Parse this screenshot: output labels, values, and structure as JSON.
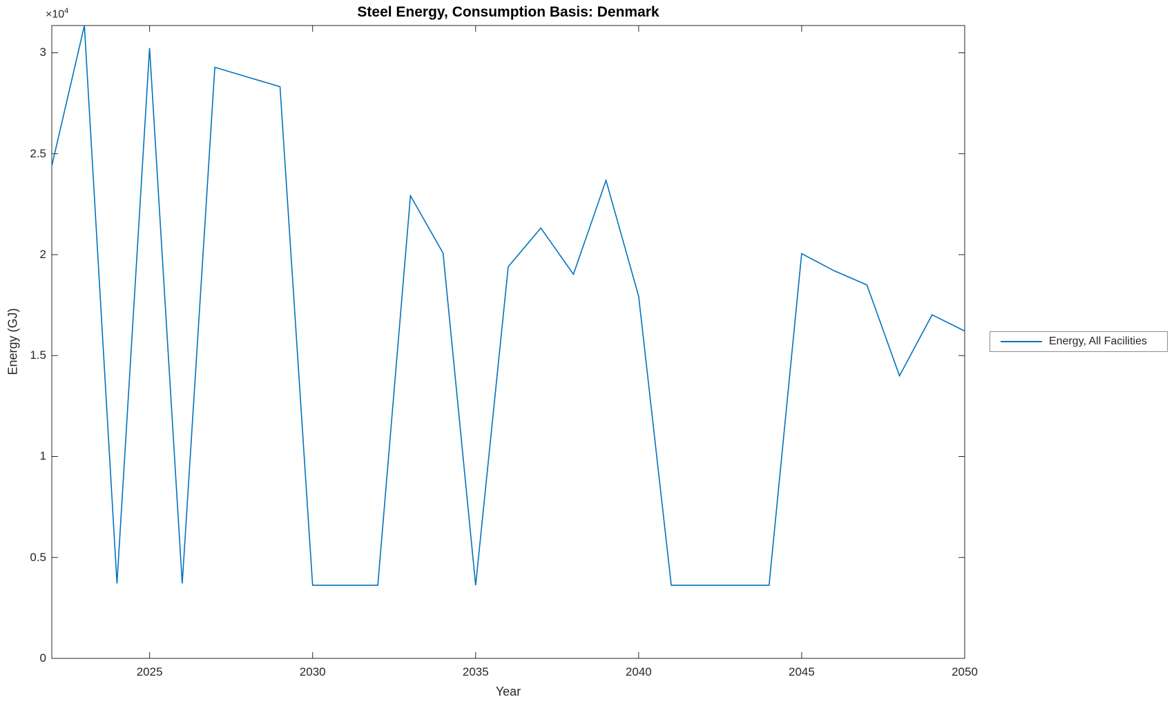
{
  "figure": {
    "title": "Steel Energy, Consumption Basis: Denmark",
    "y_axis_multiplier_base": "×10",
    "y_axis_multiplier_exponent": "4",
    "background_color": "#ffffff",
    "axis_color": "#262626",
    "series_color": "#0072BD"
  },
  "chart_data": {
    "type": "line",
    "title": "Steel Energy, Consumption Basis: Denmark",
    "xlabel": "Year",
    "ylabel": "Energy (GJ)",
    "y_multiplier_text": "×10⁴",
    "x": [
      2022,
      2023,
      2024,
      2025,
      2026,
      2027,
      2028,
      2029,
      2030,
      2031,
      2032,
      2033,
      2034,
      2035,
      2036,
      2037,
      2038,
      2039,
      2040,
      2041,
      2042,
      2043,
      2044,
      2045,
      2046,
      2047,
      2048,
      2049,
      2050
    ],
    "series": [
      {
        "name": "Energy, All Facilities",
        "color": "#0072BD",
        "values": [
          24400,
          31350,
          3710,
          30240,
          3710,
          29280,
          28800,
          28320,
          3620,
          3620,
          3620,
          22920,
          20080,
          3620,
          19400,
          21320,
          19030,
          23680,
          17930,
          3620,
          3620,
          3620,
          3620,
          20050,
          19200,
          18500,
          14000,
          17020,
          16220
        ]
      }
    ],
    "xlim": [
      2022,
      2050
    ],
    "ylim": [
      0,
      31350
    ],
    "xticks": [
      2025,
      2030,
      2035,
      2040,
      2045,
      2050
    ],
    "xtick_labels": [
      "2025",
      "2030",
      "2035",
      "2040",
      "2045",
      "2050"
    ],
    "yticks": [
      0,
      5000,
      10000,
      15000,
      20000,
      25000,
      30000
    ],
    "ytick_labels": [
      "0",
      "0.5",
      "1",
      "1.5",
      "2",
      "2.5",
      "3"
    ],
    "grid": false,
    "box": true,
    "tick_direction": "in",
    "legend": {
      "position": "outside-right",
      "entries": [
        "Energy, All Facilities"
      ]
    }
  }
}
